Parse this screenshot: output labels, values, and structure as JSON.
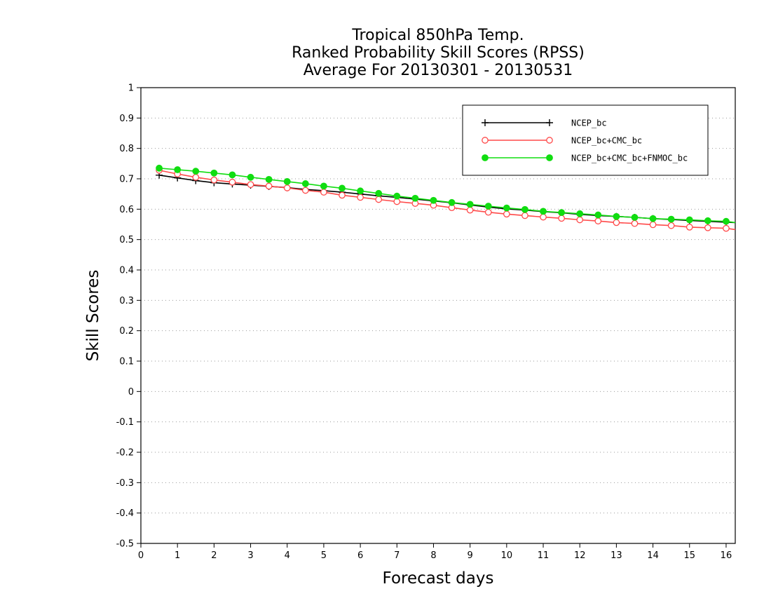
{
  "chart_data": {
    "type": "line",
    "title": [
      "Tropical 850hPa Temp.",
      "Ranked Probability Skill Scores (RPSS)",
      "Average For 20130301 - 20130531"
    ],
    "xlabel": "Forecast days",
    "ylabel": "Skill Scores",
    "xlim": [
      0,
      16.25
    ],
    "ylim": [
      -0.5,
      1
    ],
    "x_ticks": [
      0,
      1,
      2,
      3,
      4,
      5,
      6,
      7,
      8,
      9,
      10,
      11,
      12,
      13,
      14,
      15,
      16
    ],
    "y_ticks": [
      -0.5,
      -0.4,
      -0.3,
      -0.2,
      -0.1,
      0,
      0.1,
      0.2,
      0.3,
      0.4,
      0.5,
      0.6,
      0.7,
      0.8,
      0.9,
      1
    ],
    "y_tick_labels": [
      "-0.5",
      "-0.4",
      "-0.3",
      "-0.2",
      "-0.1",
      "0",
      "0.1",
      "0.2",
      "0.3",
      "0.4",
      "0.5",
      "0.6",
      "0.7",
      "0.8",
      "0.9",
      "1"
    ],
    "grid": "horizontal dotted",
    "legend_position": "top-right",
    "x": [
      0.5,
      1,
      1.5,
      2,
      2.5,
      3,
      3.5,
      4,
      4.5,
      5,
      5.5,
      6,
      6.5,
      7,
      7.5,
      8,
      8.5,
      9,
      9.5,
      10,
      10.5,
      11,
      11.5,
      12,
      12.5,
      13,
      13.5,
      14,
      14.5,
      15,
      15.5,
      16,
      16.25
    ],
    "series": [
      {
        "name": "NCEP_bc",
        "color": "#000000",
        "marker": "plus",
        "values": [
          0.712,
          0.703,
          0.694,
          0.687,
          0.683,
          0.679,
          0.675,
          0.671,
          0.665,
          0.661,
          0.656,
          0.65,
          0.644,
          0.639,
          0.633,
          0.627,
          0.621,
          0.614,
          0.607,
          0.601,
          0.597,
          0.592,
          0.588,
          0.583,
          0.579,
          0.576,
          0.573,
          0.569,
          0.566,
          0.563,
          0.56,
          0.557,
          0.556
        ]
      },
      {
        "name": "NCEP_bc+CMC_bc",
        "color": "#ff4a4a",
        "marker": "open-circle",
        "values": [
          0.728,
          0.716,
          0.705,
          0.696,
          0.689,
          0.681,
          0.676,
          0.67,
          0.662,
          0.656,
          0.646,
          0.639,
          0.632,
          0.625,
          0.619,
          0.613,
          0.605,
          0.597,
          0.59,
          0.584,
          0.579,
          0.574,
          0.57,
          0.565,
          0.561,
          0.556,
          0.553,
          0.549,
          0.546,
          0.541,
          0.539,
          0.537,
          0.533
        ]
      },
      {
        "name": "NCEP_bc+CMC_bc+FNMOC_bc",
        "color": "#11dd11",
        "marker": "filled-circle",
        "values": [
          0.735,
          0.73,
          0.725,
          0.719,
          0.713,
          0.705,
          0.698,
          0.691,
          0.684,
          0.676,
          0.669,
          0.66,
          0.652,
          0.643,
          0.636,
          0.629,
          0.622,
          0.616,
          0.61,
          0.604,
          0.599,
          0.593,
          0.589,
          0.585,
          0.581,
          0.576,
          0.573,
          0.569,
          0.567,
          0.565,
          0.562,
          0.56,
          0.556
        ]
      }
    ]
  }
}
